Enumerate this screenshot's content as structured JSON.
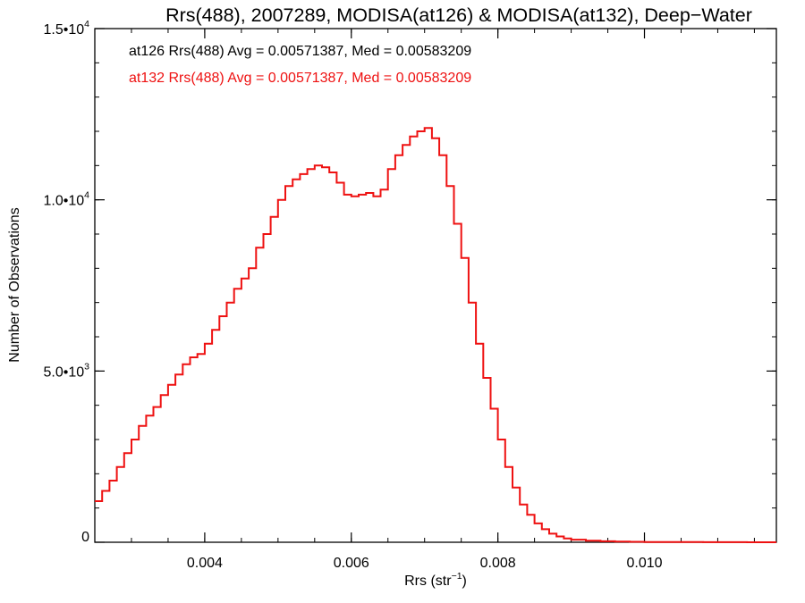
{
  "chart_data": {
    "type": "line",
    "title": "Rrs(488), 2007289, MODISA(at126) & MODISA(at132), Deep−Water",
    "xlabel": {
      "base": "Rrs (str",
      "sup": "−1",
      "close": ")"
    },
    "ylabel": "Number of Observations",
    "xlim": [
      0.0025,
      0.0118
    ],
    "ylim": [
      0,
      15000
    ],
    "x_ticks": [
      {
        "value": 0.004,
        "label": "0.004"
      },
      {
        "value": 0.006,
        "label": "0.006"
      },
      {
        "value": 0.008,
        "label": "0.008"
      },
      {
        "value": 0.01,
        "label": "0.010"
      }
    ],
    "y_ticks": [
      {
        "value": 0,
        "label": "0",
        "exp": ""
      },
      {
        "value": 5000,
        "label": "5.0•10",
        "exp": "3"
      },
      {
        "value": 10000,
        "label": "1.0•10",
        "exp": "4"
      },
      {
        "value": 15000,
        "label": "1.5•10",
        "exp": "4"
      }
    ],
    "annotations": [
      {
        "text": "at126 Rrs(488) Avg = 0.00571387, Med = 0.00583209",
        "color": "#000000"
      },
      {
        "text": "at132 Rrs(488) Avg = 0.00571387, Med = 0.00583209",
        "color": "#ee1111"
      }
    ],
    "series": [
      {
        "color": "#ee1111",
        "style": "step",
        "x": [
          0.0025,
          0.0026,
          0.0027,
          0.0028,
          0.0029,
          0.003,
          0.0031,
          0.0032,
          0.0033,
          0.0034,
          0.0035,
          0.0036,
          0.0037,
          0.0038,
          0.0039,
          0.004,
          0.0041,
          0.0042,
          0.0043,
          0.0044,
          0.0045,
          0.0046,
          0.0047,
          0.0048,
          0.0049,
          0.005,
          0.0051,
          0.0052,
          0.0053,
          0.0054,
          0.0055,
          0.0056,
          0.0057,
          0.0058,
          0.0059,
          0.006,
          0.0061,
          0.0062,
          0.0063,
          0.0064,
          0.0065,
          0.0066,
          0.0067,
          0.0068,
          0.0069,
          0.007,
          0.0071,
          0.0072,
          0.0073,
          0.0074,
          0.0075,
          0.0076,
          0.0077,
          0.0078,
          0.0079,
          0.008,
          0.0081,
          0.0082,
          0.0083,
          0.0084,
          0.0085,
          0.0086,
          0.0087,
          0.0088,
          0.0089,
          0.009,
          0.0092,
          0.0094,
          0.0096,
          0.0098,
          0.01,
          0.0102,
          0.0105,
          0.0108,
          0.0111,
          0.0114,
          0.0118
        ],
        "y": [
          1200,
          1500,
          1800,
          2200,
          2600,
          3000,
          3400,
          3700,
          3950,
          4300,
          4600,
          4900,
          5200,
          5400,
          5500,
          5800,
          6200,
          6600,
          7000,
          7400,
          7700,
          8000,
          8600,
          9000,
          9500,
          10000,
          10400,
          10600,
          10750,
          10900,
          11000,
          10950,
          10800,
          10500,
          10150,
          10100,
          10150,
          10200,
          10100,
          10300,
          10900,
          11300,
          11600,
          11850,
          12000,
          12100,
          11800,
          11300,
          10400,
          9300,
          8300,
          7000,
          5800,
          4800,
          3900,
          3000,
          2200,
          1600,
          1100,
          800,
          550,
          380,
          250,
          170,
          110,
          75,
          45,
          30,
          20,
          12,
          8,
          6,
          4,
          3,
          2,
          1,
          1
        ]
      }
    ]
  }
}
